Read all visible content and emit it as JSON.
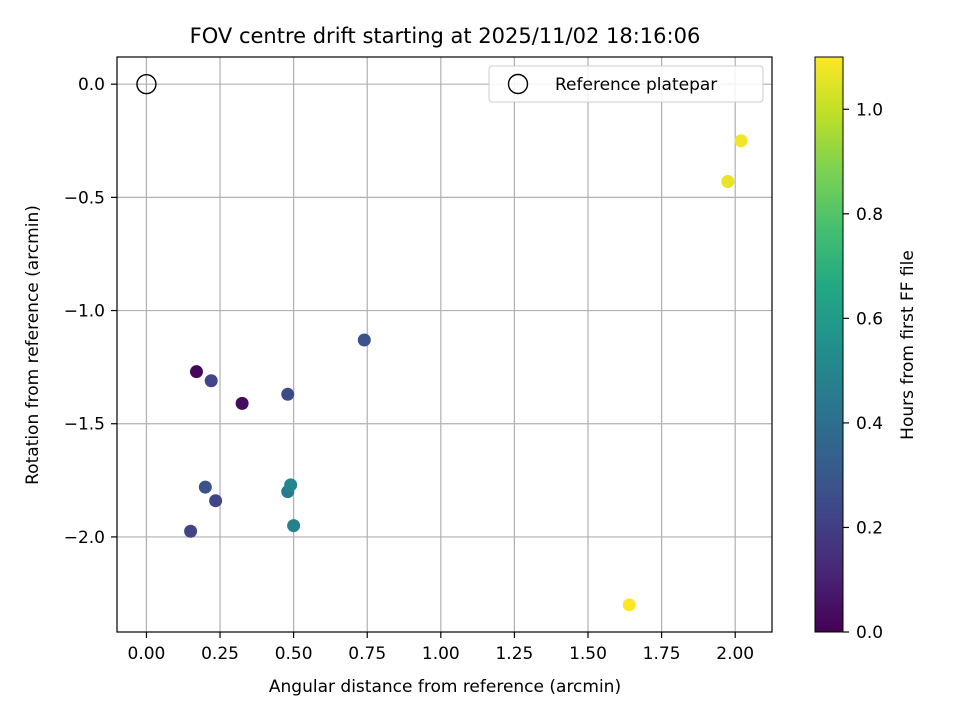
{
  "chart_data": {
    "type": "scatter",
    "title": "FOV centre drift starting at 2025/11/02 18:16:06",
    "xlabel": "Angular distance from reference (arcmin)",
    "ylabel": "Rotation from reference (arcmin)",
    "xlim": [
      -0.1,
      2.125
    ],
    "ylim": [
      -2.42,
      0.12
    ],
    "xticks": [
      0.0,
      0.25,
      0.5,
      0.75,
      1.0,
      1.25,
      1.5,
      1.75,
      2.0
    ],
    "xtick_labels": [
      "0.00",
      "0.25",
      "0.50",
      "0.75",
      "1.00",
      "1.25",
      "1.50",
      "1.75",
      "2.00"
    ],
    "yticks": [
      0.0,
      -0.5,
      -1.0,
      -1.5,
      -2.0
    ],
    "ytick_labels": [
      "0.0",
      "−0.5",
      "−1.0",
      "−1.5",
      "−2.0"
    ],
    "grid": true,
    "reference_point": {
      "label": "Reference platepar",
      "x": 0.0,
      "y": 0.0,
      "marker": "open-circle"
    },
    "legend": {
      "position": "top-right",
      "entries": [
        "Reference platepar"
      ]
    },
    "colorbar": {
      "label": "Hours from first FF file",
      "colormap": "viridis",
      "range": [
        0.0,
        1.1
      ],
      "ticks": [
        0.0,
        0.2,
        0.4,
        0.6,
        0.8,
        1.0
      ],
      "tick_labels": [
        "0.0",
        "0.2",
        "0.4",
        "0.6",
        "0.8",
        "1.0"
      ]
    },
    "points": [
      {
        "x": 0.17,
        "y": -1.27,
        "hours": 0.02
      },
      {
        "x": 0.325,
        "y": -1.41,
        "hours": 0.03
      },
      {
        "x": 0.22,
        "y": -1.31,
        "hours": 0.22
      },
      {
        "x": 0.48,
        "y": -1.37,
        "hours": 0.25
      },
      {
        "x": 0.74,
        "y": -1.13,
        "hours": 0.28
      },
      {
        "x": 0.2,
        "y": -1.78,
        "hours": 0.28
      },
      {
        "x": 0.235,
        "y": -1.84,
        "hours": 0.22
      },
      {
        "x": 0.15,
        "y": -1.975,
        "hours": 0.22
      },
      {
        "x": 0.48,
        "y": -1.8,
        "hours": 0.45
      },
      {
        "x": 0.49,
        "y": -1.77,
        "hours": 0.5
      },
      {
        "x": 0.5,
        "y": -1.95,
        "hours": 0.48
      },
      {
        "x": 1.975,
        "y": -0.43,
        "hours": 1.06
      },
      {
        "x": 2.02,
        "y": -0.25,
        "hours": 1.08
      },
      {
        "x": 1.64,
        "y": -2.3,
        "hours": 1.1
      }
    ]
  }
}
